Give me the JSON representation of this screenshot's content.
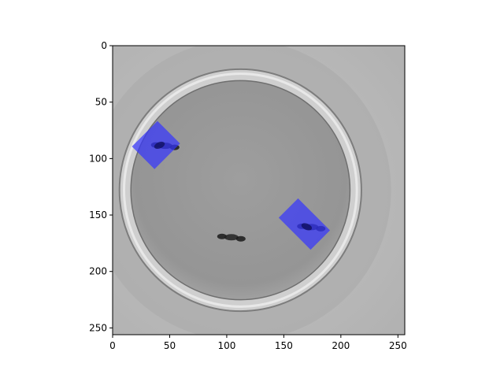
{
  "chart_data": {
    "type": "image",
    "title": "",
    "xlabel": "",
    "ylabel": "",
    "xlim": [
      0,
      256
    ],
    "ylim": [
      256,
      0
    ],
    "xticks": [
      0,
      50,
      100,
      150,
      200,
      250
    ],
    "yticks": [
      0,
      50,
      100,
      150,
      200,
      250
    ],
    "x_tick_labels": [
      "0",
      "50",
      "100",
      "150",
      "200",
      "250"
    ],
    "y_tick_labels": [
      "0",
      "50",
      "100",
      "150",
      "200",
      "250"
    ],
    "grid": false,
    "image_content": {
      "subject": "grayscale top view of a petri dish containing insects",
      "dish_center": [
        112,
        128
      ],
      "dish_radius": 100,
      "insects": [
        {
          "id": "insect-1",
          "center": [
            44,
            88
          ]
        },
        {
          "id": "insect-2",
          "center": [
            102,
            169
          ]
        },
        {
          "id": "insect-3",
          "center": [
            172,
            160
          ]
        }
      ],
      "highlight_color": "#3333ff",
      "highlight_opacity": 0.7,
      "highlights": [
        {
          "id": "highlight-left",
          "center": [
            38,
            88
          ],
          "width": 28,
          "height": 32,
          "angle_deg": 45
        },
        {
          "id": "highlight-right",
          "center": [
            168,
            158
          ],
          "width": 24,
          "height": 40,
          "angle_deg": -45
        }
      ]
    }
  }
}
